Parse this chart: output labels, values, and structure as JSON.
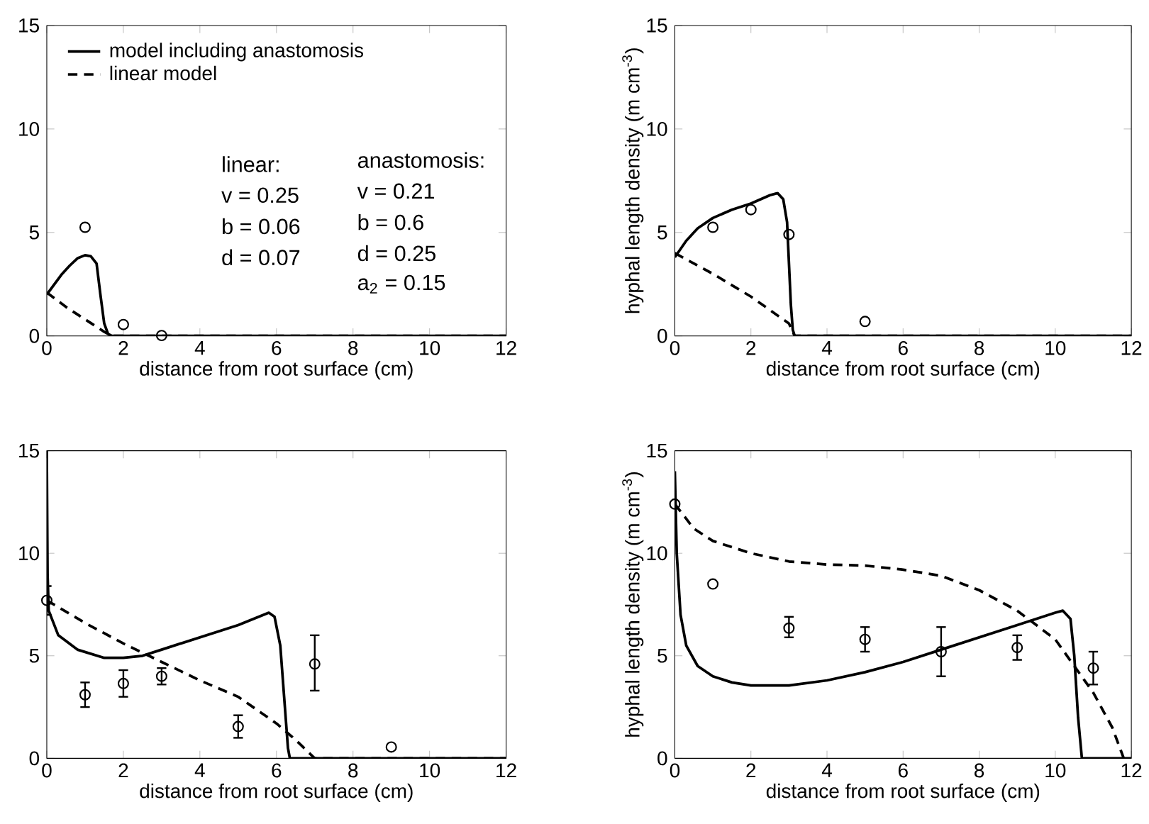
{
  "chart_data": [
    {
      "type": "line",
      "xlabel": "distance from root surface (cm)",
      "xlim": [
        0,
        12
      ],
      "ylim": [
        0,
        15
      ],
      "xticks": [
        0,
        2,
        4,
        6,
        8,
        10,
        12
      ],
      "yticks": [
        0,
        5,
        10,
        15
      ],
      "legend": "top left",
      "annotations": [
        "linear:",
        "v = 0.25",
        "b = 0.06",
        "d = 0.07",
        "anastomosis:",
        "v = 0.21",
        "b = 0.6",
        "d = 0.25",
        "a$_{2}$ = 0.15"
      ],
      "series": [
        {
          "name": "model including anastomosis",
          "color": "#000000",
          "line_style": "solid",
          "marker": "none",
          "x": [
            0,
            0.2,
            0.4,
            0.6,
            0.8,
            1.0,
            1.15,
            1.3,
            1.4,
            1.5,
            1.6,
            1.7,
            12
          ],
          "values": [
            2.0,
            2.5,
            3.0,
            3.4,
            3.75,
            3.9,
            3.85,
            3.5,
            2.0,
            0.6,
            0.1,
            0,
            0
          ]
        },
        {
          "name": "linear model",
          "color": "#000000",
          "line_style": "dashed",
          "marker": "none",
          "x": [
            0,
            0.5,
            1.0,
            1.5,
            1.7,
            12
          ],
          "values": [
            2.1,
            1.4,
            0.8,
            0.2,
            0,
            0
          ]
        },
        {
          "type": "scatter",
          "color": "#000000",
          "marker": "circle",
          "x": [
            1,
            2,
            3
          ],
          "values": [
            5.25,
            0.55,
            0.02
          ]
        }
      ]
    },
    {
      "type": "line",
      "xlabel": "distance from root surface (cm)",
      "ylabel": "hyphal length density (m cm$^{-3}$)",
      "xlim": [
        0,
        12
      ],
      "ylim": [
        0,
        15
      ],
      "xticks": [
        0,
        2,
        4,
        6,
        8,
        10,
        12
      ],
      "yticks": [
        0,
        5,
        10,
        15
      ],
      "series": [
        {
          "color": "#000000",
          "line_style": "solid",
          "marker": "none",
          "x": [
            0,
            0.3,
            0.6,
            1,
            1.5,
            2,
            2.5,
            2.7,
            2.85,
            2.95,
            3.0,
            3.05,
            3.1,
            3.15,
            12
          ],
          "values": [
            3.8,
            4.6,
            5.2,
            5.7,
            6.1,
            6.4,
            6.8,
            6.9,
            6.6,
            5.5,
            3.5,
            1.5,
            0.3,
            0,
            0
          ]
        },
        {
          "color": "#000000",
          "line_style": "dashed",
          "marker": "none",
          "x": [
            0,
            1,
            2,
            3,
            3.15,
            12
          ],
          "values": [
            4.0,
            3.0,
            1.9,
            0.6,
            0,
            0
          ]
        },
        {
          "type": "scatter",
          "color": "#000000",
          "marker": "circle",
          "x": [
            1,
            2,
            3,
            5
          ],
          "values": [
            5.25,
            6.1,
            4.9,
            0.7
          ]
        }
      ]
    },
    {
      "type": "line",
      "xlabel": "distance from root surface (cm)",
      "xlim": [
        0,
        12
      ],
      "ylim": [
        0,
        15
      ],
      "xticks": [
        0,
        2,
        4,
        6,
        8,
        10,
        12
      ],
      "yticks": [
        0,
        5,
        10,
        15
      ],
      "series": [
        {
          "color": "#000000",
          "line_style": "solid",
          "marker": "none",
          "x": [
            0,
            0.02,
            0.05,
            0.3,
            0.8,
            1.5,
            2,
            2.5,
            3,
            4,
            5,
            5.8,
            5.95,
            6.1,
            6.2,
            6.3,
            6.35,
            12
          ],
          "values": [
            15,
            9,
            7.2,
            6.0,
            5.3,
            4.9,
            4.9,
            5.0,
            5.3,
            5.9,
            6.5,
            7.1,
            6.9,
            5.5,
            3.0,
            0.5,
            0,
            0
          ]
        },
        {
          "color": "#000000",
          "line_style": "dashed",
          "marker": "none",
          "x": [
            0,
            1,
            2,
            3,
            4,
            5,
            6,
            6.5,
            7,
            12
          ],
          "values": [
            7.7,
            6.6,
            5.6,
            4.7,
            3.8,
            3.0,
            1.7,
            0.9,
            0,
            0
          ]
        },
        {
          "type": "scatter",
          "color": "#000000",
          "marker": "circle",
          "x": [
            0,
            1,
            2,
            3,
            5,
            7,
            9
          ],
          "values": [
            7.7,
            3.1,
            3.65,
            4.0,
            1.55,
            4.6,
            0.55
          ],
          "errors": [
            [
              7.0,
              8.4
            ],
            [
              2.5,
              3.7
            ],
            [
              3.0,
              4.3
            ],
            [
              3.6,
              4.4
            ],
            [
              1.0,
              2.1
            ],
            [
              3.3,
              6.0
            ],
            null
          ]
        }
      ]
    },
    {
      "type": "line",
      "xlabel": "distance from root surface (cm)",
      "ylabel": "hyphal length density (m cm$^{-3}$)",
      "xlim": [
        0,
        12
      ],
      "ylim": [
        0,
        15
      ],
      "xticks": [
        0,
        2,
        4,
        6,
        8,
        10,
        12
      ],
      "yticks": [
        0,
        5,
        10,
        15
      ],
      "series": [
        {
          "color": "#000000",
          "line_style": "solid",
          "marker": "none",
          "x": [
            0,
            0.05,
            0.15,
            0.3,
            0.6,
            1,
            1.5,
            2,
            3,
            4,
            5,
            6,
            7,
            8,
            9,
            10,
            10.2,
            10.4,
            10.5,
            10.6,
            10.7,
            12
          ],
          "values": [
            14,
            10,
            7,
            5.5,
            4.5,
            4.0,
            3.7,
            3.55,
            3.55,
            3.8,
            4.2,
            4.7,
            5.3,
            5.9,
            6.5,
            7.1,
            7.2,
            6.8,
            5,
            2,
            0,
            0
          ]
        },
        {
          "color": "#000000",
          "line_style": "dashed",
          "marker": "none",
          "x": [
            0,
            0.5,
            1,
            2,
            3,
            4,
            5,
            6,
            7,
            8,
            9,
            10,
            11,
            11.5,
            11.8,
            12
          ],
          "values": [
            12.4,
            11.2,
            10.6,
            10.0,
            9.6,
            9.45,
            9.4,
            9.2,
            8.9,
            8.2,
            7.2,
            5.8,
            3.2,
            1.5,
            0,
            0
          ]
        },
        {
          "type": "scatter",
          "color": "#000000",
          "marker": "circle",
          "x": [
            0,
            1,
            3,
            5,
            7,
            9,
            11
          ],
          "values": [
            12.4,
            8.5,
            6.35,
            5.8,
            5.2,
            5.4,
            4.4
          ],
          "errors": [
            null,
            null,
            [
              5.9,
              6.9
            ],
            [
              5.2,
              6.4
            ],
            [
              4.0,
              6.4
            ],
            [
              4.8,
              6.0
            ],
            [
              3.6,
              5.2
            ]
          ]
        }
      ]
    }
  ]
}
